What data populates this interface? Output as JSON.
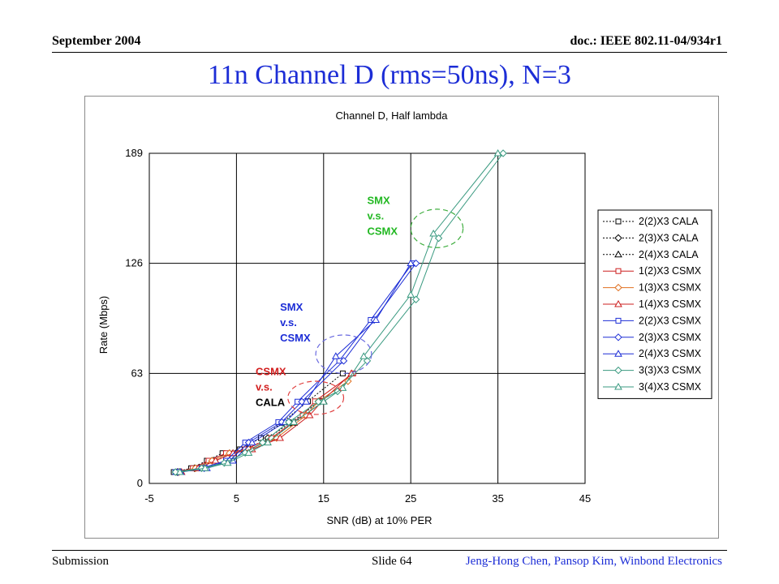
{
  "header": {
    "left": "September 2004",
    "right": "doc.: IEEE 802.11-04/934r1"
  },
  "slide_title": "11n Channel D (rms=50ns), N=3",
  "footer": {
    "left": "Submission",
    "center": "Slide 64",
    "right": "Jeng-Hong Chen, Pansop Kim, Winbond Electronics"
  },
  "chart_data": {
    "type": "line",
    "title": "Channel D, Half lambda",
    "xlabel": "SNR (dB) at 10% PER",
    "ylabel": "Rate (Mbps)",
    "xlim": [
      -5,
      45
    ],
    "ylim": [
      0,
      189
    ],
    "xticks": [
      -5,
      5,
      15,
      25,
      35,
      45
    ],
    "yticks": [
      0,
      63,
      126,
      189
    ],
    "grid": true,
    "legend_position": "right",
    "series": [
      {
        "name": "2(2)X3 CALA",
        "color": "#000000",
        "dash": "dotted",
        "marker": "square",
        "x": [
          -2.2,
          -0.2,
          1.6,
          3.4,
          5.4,
          7.8,
          10.2,
          13.2,
          17.2
        ],
        "y": [
          6.5,
          8.7,
          13,
          17.3,
          19.5,
          26,
          34.7,
          47,
          63
        ]
      },
      {
        "name": "2(3)X3 CALA",
        "color": "#000000",
        "dash": "dotted",
        "marker": "diamond",
        "x": [
          -1.8,
          0.2,
          2.2,
          4.2,
          6.2,
          8.6,
          11.2,
          14.6
        ],
        "y": [
          6.5,
          8.7,
          13,
          17.3,
          19.5,
          26,
          34.7,
          47
        ]
      },
      {
        "name": "2(4)X3 CALA",
        "color": "#000000",
        "dash": "dotted",
        "marker": "triangle",
        "x": [
          -1.5,
          0.6,
          2.6,
          4.6,
          6.6,
          9.0,
          11.6,
          15.0
        ],
        "y": [
          6.5,
          8.7,
          13,
          17.3,
          19.5,
          26,
          34.7,
          47
        ]
      },
      {
        "name": "1(2)X3 CSMX",
        "color": "#cc1f1f",
        "dash": "solid",
        "marker": "square",
        "x": [
          -1.9,
          0.0,
          1.8,
          3.8,
          6.0,
          9.0,
          12.6,
          14.0,
          18.4
        ],
        "y": [
          6.5,
          8.7,
          13,
          17.3,
          19.5,
          26,
          39,
          47,
          63
        ]
      },
      {
        "name": "1(3)X3 CSMX",
        "color": "#e07020",
        "dash": "solid",
        "marker": "diamond",
        "x": [
          -1.6,
          0.3,
          2.2,
          4.2,
          6.4,
          9.6,
          13.0,
          14.4,
          17.8
        ],
        "y": [
          6.5,
          8.7,
          13,
          17.3,
          19.5,
          26,
          39,
          47,
          58.5
        ]
      },
      {
        "name": "1(4)X3 CSMX",
        "color": "#cc1f1f",
        "dash": "solid",
        "marker": "triangle",
        "x": [
          -1.3,
          0.6,
          2.6,
          4.6,
          6.8,
          10.0,
          13.4,
          14.8,
          18.2
        ],
        "y": [
          6.5,
          8.7,
          13,
          17.3,
          19.5,
          26,
          39,
          47,
          63
        ]
      },
      {
        "name": "2(2)X3 CSMX",
        "color": "#1c2dd6",
        "dash": "solid",
        "marker": "square",
        "x": [
          -2.0,
          1.0,
          3.8,
          6.0,
          9.8,
          12.0,
          16.8,
          20.4,
          25.2
        ],
        "y": [
          6.5,
          8.7,
          13,
          23.4,
          35.1,
          46.8,
          70.2,
          93.6,
          126
        ]
      },
      {
        "name": "2(3)X3 CSMX",
        "color": "#1c2dd6",
        "dash": "solid",
        "marker": "diamond",
        "x": [
          -1.7,
          1.3,
          4.2,
          6.4,
          10.2,
          12.5,
          17.3,
          20.8,
          25.6
        ],
        "y": [
          6.5,
          8.7,
          13,
          23.4,
          35.1,
          46.8,
          70.2,
          93.6,
          126
        ]
      },
      {
        "name": "2(4)X3 CSMX",
        "color": "#1c2dd6",
        "dash": "solid",
        "marker": "triangle",
        "x": [
          -1.4,
          1.6,
          4.6,
          6.8,
          10.6,
          13.0,
          16.4,
          21.0,
          25.0
        ],
        "y": [
          6.5,
          8.7,
          13,
          23.4,
          35.1,
          46.8,
          72.8,
          93.6,
          126
        ]
      },
      {
        "name": "3(3)X3 CSMX",
        "color": "#3a9a80",
        "dash": "solid",
        "marker": "diamond",
        "x": [
          -2.0,
          1.0,
          3.6,
          6.0,
          8.0,
          11.0,
          14.4,
          16.6,
          20.0,
          25.6,
          28.2,
          35.6
        ],
        "y": [
          6.5,
          8.7,
          11.7,
          17.5,
          23.4,
          35.1,
          46.8,
          52.7,
          70.2,
          105.3,
          140.4,
          189
        ]
      },
      {
        "name": "3(4)X3 CSMX",
        "color": "#3a9a80",
        "dash": "solid",
        "marker": "triangle",
        "x": [
          -1.5,
          1.4,
          4.0,
          6.4,
          8.6,
          11.6,
          15.0,
          17.2,
          19.6,
          25.0,
          27.6,
          35.0
        ],
        "y": [
          6.5,
          8.7,
          11.7,
          17.5,
          23.4,
          35.1,
          46.8,
          54.6,
          72.8,
          108,
          143,
          189
        ]
      }
    ],
    "annotations": [
      {
        "lines": [
          "SMX",
          "v.s.",
          "CSMX"
        ],
        "color": "#22b822",
        "at": [
          20,
          160
        ],
        "circle": {
          "cx": 28,
          "cy": 146,
          "rx": 3,
          "ry": 11
        },
        "circle_color": "#3fae3f"
      },
      {
        "lines": [
          "SMX",
          "v.s.",
          "CSMX"
        ],
        "color": "#1c2dd6",
        "at": [
          10,
          99
        ],
        "circle": {
          "cx": 17.3,
          "cy": 74,
          "rx": 3.2,
          "ry": 11
        },
        "circle_color": "#6a6ae0"
      },
      {
        "lines": [
          "CSMX",
          "v.s.",
          "CALA"
        ],
        "colors": [
          "#d21e1e",
          "#d21e1e",
          "#000000"
        ],
        "at": [
          7.2,
          62
        ],
        "circle": {
          "cx": 14.1,
          "cy": 49,
          "rx": 3.2,
          "ry": 9.5
        },
        "circle_color": "#e04040"
      }
    ]
  }
}
